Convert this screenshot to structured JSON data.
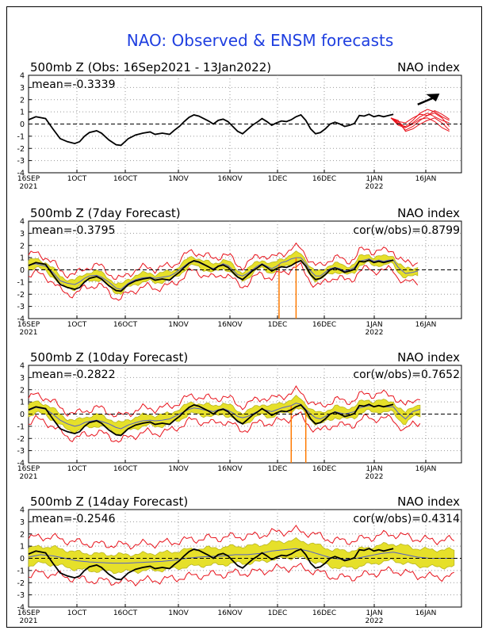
{
  "title": "NAO: Observed & ENSM forecasts",
  "colors": {
    "title": "#1f3fe0",
    "observed": "#000000",
    "ensemble_member": "#e8121b",
    "spread": "#e6e02a",
    "spread_edge": "#b9b61f",
    "ensemble_mean": "#5560c8",
    "forecast_spike": "#ff7a00"
  },
  "x_axis": {
    "ticks": [
      {
        "top": "16SEP",
        "bottom": "2021"
      },
      {
        "top": "1OCT",
        "bottom": ""
      },
      {
        "top": "16OCT",
        "bottom": ""
      },
      {
        "top": "1NOV",
        "bottom": ""
      },
      {
        "top": "16NOV",
        "bottom": ""
      },
      {
        "top": "1DEC",
        "bottom": ""
      },
      {
        "top": "16DEC",
        "bottom": ""
      },
      {
        "top": "1JAN",
        "bottom": "2022"
      },
      {
        "top": "16JAN",
        "bottom": ""
      }
    ]
  },
  "chart_data": [
    {
      "type": "line",
      "title_left": "500mb Z (Obs: 16Sep2021 - 13Jan2022)",
      "title_right": "NAO index",
      "mean_label": "mean=-0.3339",
      "cor_label": "",
      "ylim": [
        -4,
        4
      ],
      "yticks": [
        "4",
        "3",
        "2",
        "1",
        "0",
        "-1",
        "-2",
        "-3",
        "-4"
      ],
      "grid": true,
      "annotation": "upward-arrow",
      "observed": [
        [
          0,
          0.35
        ],
        [
          3,
          0.6
        ],
        [
          7,
          0.45
        ],
        [
          10,
          -0.4
        ],
        [
          13,
          -1.2
        ],
        [
          16,
          -1.45
        ],
        [
          19,
          -1.6
        ],
        [
          21,
          -1.45
        ],
        [
          23,
          -1.0
        ],
        [
          25,
          -0.7
        ],
        [
          28,
          -0.55
        ],
        [
          30,
          -0.75
        ],
        [
          33,
          -1.3
        ],
        [
          36,
          -1.7
        ],
        [
          38,
          -1.75
        ],
        [
          41,
          -1.2
        ],
        [
          44,
          -0.9
        ],
        [
          47,
          -0.75
        ],
        [
          50,
          -0.65
        ],
        [
          52,
          -0.85
        ],
        [
          55,
          -0.75
        ],
        [
          58,
          -0.85
        ],
        [
          60,
          -0.5
        ],
        [
          62,
          -0.2
        ],
        [
          64,
          0.2
        ],
        [
          66,
          0.55
        ],
        [
          68,
          0.75
        ],
        [
          70,
          0.65
        ],
        [
          72,
          0.45
        ],
        [
          74,
          0.25
        ],
        [
          76,
          0.0
        ],
        [
          78,
          0.3
        ],
        [
          80,
          0.4
        ],
        [
          82,
          0.2
        ],
        [
          84,
          -0.2
        ],
        [
          86,
          -0.6
        ],
        [
          88,
          -0.8
        ],
        [
          90,
          -0.45
        ],
        [
          92,
          -0.1
        ],
        [
          94,
          0.15
        ],
        [
          96,
          0.45
        ],
        [
          98,
          0.2
        ],
        [
          100,
          -0.1
        ],
        [
          102,
          0.1
        ],
        [
          104,
          0.25
        ],
        [
          106,
          0.2
        ],
        [
          108,
          0.35
        ],
        [
          110,
          0.6
        ],
        [
          112,
          0.75
        ],
        [
          114,
          0.3
        ],
        [
          116,
          -0.4
        ],
        [
          118,
          -0.8
        ],
        [
          120,
          -0.7
        ],
        [
          122,
          -0.4
        ],
        [
          124,
          0.0
        ],
        [
          126,
          0.15
        ],
        [
          128,
          0.0
        ],
        [
          130,
          -0.2
        ],
        [
          132,
          -0.1
        ],
        [
          134,
          0.05
        ],
        [
          136,
          0.7
        ],
        [
          138,
          0.65
        ],
        [
          140,
          0.8
        ],
        [
          142,
          0.6
        ],
        [
          144,
          0.7
        ],
        [
          146,
          0.6
        ],
        [
          148,
          0.7
        ],
        [
          150,
          0.8
        ]
      ],
      "ensemble_members": [
        [
          [
            149,
            0.5
          ],
          [
            152,
            0.2
          ],
          [
            155,
            -0.3
          ],
          [
            158,
            0.1
          ],
          [
            161,
            0.6
          ],
          [
            164,
            0.9
          ],
          [
            167,
            0.6
          ],
          [
            170,
            0.3
          ],
          [
            173,
            0.1
          ]
        ],
        [
          [
            149,
            0.5
          ],
          [
            152,
            0.1
          ],
          [
            155,
            -0.5
          ],
          [
            158,
            -0.2
          ],
          [
            161,
            0.3
          ],
          [
            164,
            0.7
          ],
          [
            167,
            0.9
          ],
          [
            170,
            0.5
          ],
          [
            173,
            -0.2
          ]
        ],
        [
          [
            149,
            0.5
          ],
          [
            152,
            0.0
          ],
          [
            155,
            -0.2
          ],
          [
            158,
            0.3
          ],
          [
            161,
            0.9
          ],
          [
            164,
            1.2
          ],
          [
            167,
            1.0
          ],
          [
            170,
            0.6
          ],
          [
            173,
            0.3
          ]
        ],
        [
          [
            149,
            0.5
          ],
          [
            152,
            0.3
          ],
          [
            155,
            -0.6
          ],
          [
            158,
            -0.4
          ],
          [
            161,
            0.0
          ],
          [
            164,
            0.3
          ],
          [
            167,
            0.5
          ],
          [
            170,
            0.1
          ],
          [
            173,
            -0.5
          ]
        ],
        [
          [
            149,
            0.5
          ],
          [
            152,
            -0.1
          ],
          [
            155,
            -0.3
          ],
          [
            158,
            0.0
          ],
          [
            161,
            0.4
          ],
          [
            164,
            0.5
          ],
          [
            167,
            0.2
          ],
          [
            170,
            -0.3
          ],
          [
            173,
            -0.6
          ]
        ],
        [
          [
            149,
            0.5
          ],
          [
            152,
            0.2
          ],
          [
            155,
            0.1
          ],
          [
            158,
            0.5
          ],
          [
            161,
            0.8
          ],
          [
            164,
            0.7
          ],
          [
            167,
            1.1
          ],
          [
            170,
            0.8
          ],
          [
            173,
            0.4
          ]
        ]
      ]
    },
    {
      "type": "line",
      "title_left": "500mb Z (7day Forecast)",
      "title_right": "NAO index",
      "mean_label": "mean=-0.3795",
      "cor_label": "cor(w/obs)=0.8799",
      "ylim": [
        -4,
        4
      ],
      "yticks": [
        "4",
        "3",
        "2",
        "1",
        "0",
        "-1",
        "-2",
        "-3",
        "-4"
      ],
      "grid": true,
      "spread_halfwidth": 0.35,
      "outer_halfwidth": 0.8,
      "spikes": [
        [
          103,
          -4
        ],
        [
          110,
          -4
        ]
      ],
      "forecast": [
        [
          0,
          0.4
        ],
        [
          3,
          0.5
        ],
        [
          7,
          0.3
        ],
        [
          10,
          -0.2
        ],
        [
          13,
          -0.9
        ],
        [
          16,
          -1.1
        ],
        [
          19,
          -1.2
        ],
        [
          21,
          -1.0
        ],
        [
          23,
          -0.7
        ],
        [
          25,
          -0.5
        ],
        [
          28,
          -0.45
        ],
        [
          30,
          -0.6
        ],
        [
          33,
          -1.0
        ],
        [
          36,
          -1.5
        ],
        [
          38,
          -1.6
        ],
        [
          41,
          -1.1
        ],
        [
          44,
          -0.8
        ],
        [
          47,
          -0.65
        ],
        [
          50,
          -0.6
        ],
        [
          52,
          -0.7
        ],
        [
          55,
          -0.6
        ],
        [
          58,
          -0.5
        ],
        [
          60,
          -0.3
        ],
        [
          62,
          0.0
        ],
        [
          64,
          0.3
        ],
        [
          66,
          0.6
        ],
        [
          68,
          0.7
        ],
        [
          70,
          0.6
        ],
        [
          72,
          0.4
        ],
        [
          74,
          0.25
        ],
        [
          76,
          0.1
        ],
        [
          78,
          0.3
        ],
        [
          80,
          0.5
        ],
        [
          82,
          0.35
        ],
        [
          84,
          0.0
        ],
        [
          86,
          -0.4
        ],
        [
          88,
          -0.5
        ],
        [
          90,
          -0.3
        ],
        [
          92,
          0.0
        ],
        [
          94,
          0.3
        ],
        [
          96,
          0.5
        ],
        [
          98,
          0.3
        ],
        [
          100,
          0.1
        ],
        [
          102,
          0.3
        ],
        [
          104,
          0.6
        ],
        [
          106,
          0.7
        ],
        [
          108,
          0.9
        ],
        [
          110,
          1.0
        ],
        [
          112,
          1.0
        ],
        [
          114,
          0.5
        ],
        [
          116,
          -0.1
        ],
        [
          118,
          -0.5
        ],
        [
          120,
          -0.5
        ],
        [
          122,
          -0.2
        ],
        [
          124,
          0.1
        ],
        [
          126,
          0.2
        ],
        [
          128,
          0.1
        ],
        [
          130,
          -0.1
        ],
        [
          132,
          0.0
        ],
        [
          134,
          0.2
        ],
        [
          136,
          0.7
        ],
        [
          138,
          0.8
        ],
        [
          140,
          0.9
        ],
        [
          142,
          0.7
        ],
        [
          144,
          0.8
        ],
        [
          146,
          0.7
        ],
        [
          148,
          0.8
        ],
        [
          150,
          0.8
        ],
        [
          152,
          0.2
        ],
        [
          155,
          -0.3
        ],
        [
          158,
          -0.2
        ],
        [
          160,
          -0.1
        ]
      ]
    },
    {
      "type": "line",
      "title_left": "500mb Z (10day Forecast)",
      "title_right": "NAO index",
      "mean_label": "mean=-0.2822",
      "cor_label": "cor(w/obs)=0.7652",
      "ylim": [
        -4,
        4
      ],
      "yticks": [
        "4",
        "3",
        "2",
        "1",
        "0",
        "-1",
        "-2",
        "-3",
        "-4"
      ],
      "grid": true,
      "spread_halfwidth": 0.45,
      "outer_halfwidth": 1.0,
      "spikes": [
        [
          108,
          -4
        ],
        [
          114,
          -4
        ]
      ],
      "forecast": [
        [
          0,
          0.3
        ],
        [
          3,
          0.55
        ],
        [
          7,
          0.4
        ],
        [
          10,
          0.0
        ],
        [
          13,
          -0.5
        ],
        [
          16,
          -0.8
        ],
        [
          19,
          -1.0
        ],
        [
          21,
          -0.9
        ],
        [
          23,
          -0.7
        ],
        [
          25,
          -0.6
        ],
        [
          28,
          -0.5
        ],
        [
          30,
          -0.6
        ],
        [
          33,
          -0.8
        ],
        [
          36,
          -1.1
        ],
        [
          38,
          -1.2
        ],
        [
          41,
          -0.9
        ],
        [
          44,
          -0.7
        ],
        [
          47,
          -0.55
        ],
        [
          50,
          -0.5
        ],
        [
          52,
          -0.55
        ],
        [
          55,
          -0.5
        ],
        [
          58,
          -0.4
        ],
        [
          60,
          -0.2
        ],
        [
          62,
          0.0
        ],
        [
          64,
          0.2
        ],
        [
          66,
          0.4
        ],
        [
          68,
          0.5
        ],
        [
          70,
          0.45
        ],
        [
          72,
          0.35
        ],
        [
          74,
          0.3
        ],
        [
          76,
          0.2
        ],
        [
          78,
          0.35
        ],
        [
          80,
          0.45
        ],
        [
          82,
          0.3
        ],
        [
          84,
          0.1
        ],
        [
          86,
          -0.2
        ],
        [
          88,
          -0.3
        ],
        [
          90,
          -0.2
        ],
        [
          92,
          0.0
        ],
        [
          94,
          0.2
        ],
        [
          96,
          0.4
        ],
        [
          98,
          0.3
        ],
        [
          100,
          0.2
        ],
        [
          102,
          0.35
        ],
        [
          104,
          0.5
        ],
        [
          106,
          0.6
        ],
        [
          108,
          0.7
        ],
        [
          110,
          0.9
        ],
        [
          112,
          0.8
        ],
        [
          114,
          0.4
        ],
        [
          116,
          0.0
        ],
        [
          118,
          -0.3
        ],
        [
          120,
          -0.4
        ],
        [
          122,
          -0.2
        ],
        [
          124,
          0.0
        ],
        [
          126,
          0.2
        ],
        [
          128,
          0.1
        ],
        [
          130,
          0.0
        ],
        [
          132,
          0.1
        ],
        [
          134,
          0.2
        ],
        [
          136,
          0.5
        ],
        [
          138,
          0.6
        ],
        [
          140,
          0.7
        ],
        [
          142,
          0.6
        ],
        [
          144,
          0.7
        ],
        [
          146,
          0.6
        ],
        [
          148,
          0.6
        ],
        [
          150,
          0.6
        ],
        [
          152,
          0.1
        ],
        [
          155,
          -0.4
        ],
        [
          158,
          0.2
        ],
        [
          161,
          0.4
        ]
      ]
    },
    {
      "type": "line",
      "title_left": "500mb Z (14day Forecast)",
      "title_right": "NAO index",
      "mean_label": "mean=-0.2546",
      "cor_label": "cor(w/obs)=0.4314",
      "ylim": [
        -4,
        4
      ],
      "yticks": [
        "4",
        "3",
        "2",
        "1",
        "0",
        "-1",
        "-2",
        "-3",
        "-4"
      ],
      "grid": true,
      "spread_halfwidth": 0.7,
      "outer_halfwidth": 1.5,
      "spikes": [],
      "forecast": [
        [
          0,
          0.1
        ],
        [
          5,
          0.3
        ],
        [
          10,
          0.2
        ],
        [
          15,
          0.0
        ],
        [
          20,
          -0.2
        ],
        [
          25,
          -0.3
        ],
        [
          30,
          -0.35
        ],
        [
          35,
          -0.4
        ],
        [
          40,
          -0.4
        ],
        [
          45,
          -0.35
        ],
        [
          50,
          -0.3
        ],
        [
          55,
          -0.25
        ],
        [
          60,
          -0.15
        ],
        [
          65,
          0.0
        ],
        [
          70,
          0.1
        ],
        [
          75,
          0.15
        ],
        [
          80,
          0.2
        ],
        [
          85,
          0.3
        ],
        [
          90,
          0.3
        ],
        [
          95,
          0.4
        ],
        [
          100,
          0.6
        ],
        [
          105,
          0.7
        ],
        [
          110,
          0.8
        ],
        [
          115,
          0.6
        ],
        [
          120,
          0.3
        ],
        [
          125,
          0.0
        ],
        [
          130,
          -0.1
        ],
        [
          135,
          0.0
        ],
        [
          140,
          0.2
        ],
        [
          145,
          0.4
        ],
        [
          150,
          0.5
        ],
        [
          155,
          0.3
        ],
        [
          160,
          0.1
        ],
        [
          165,
          0.0
        ],
        [
          170,
          0.0
        ],
        [
          175,
          0.0
        ]
      ]
    }
  ]
}
